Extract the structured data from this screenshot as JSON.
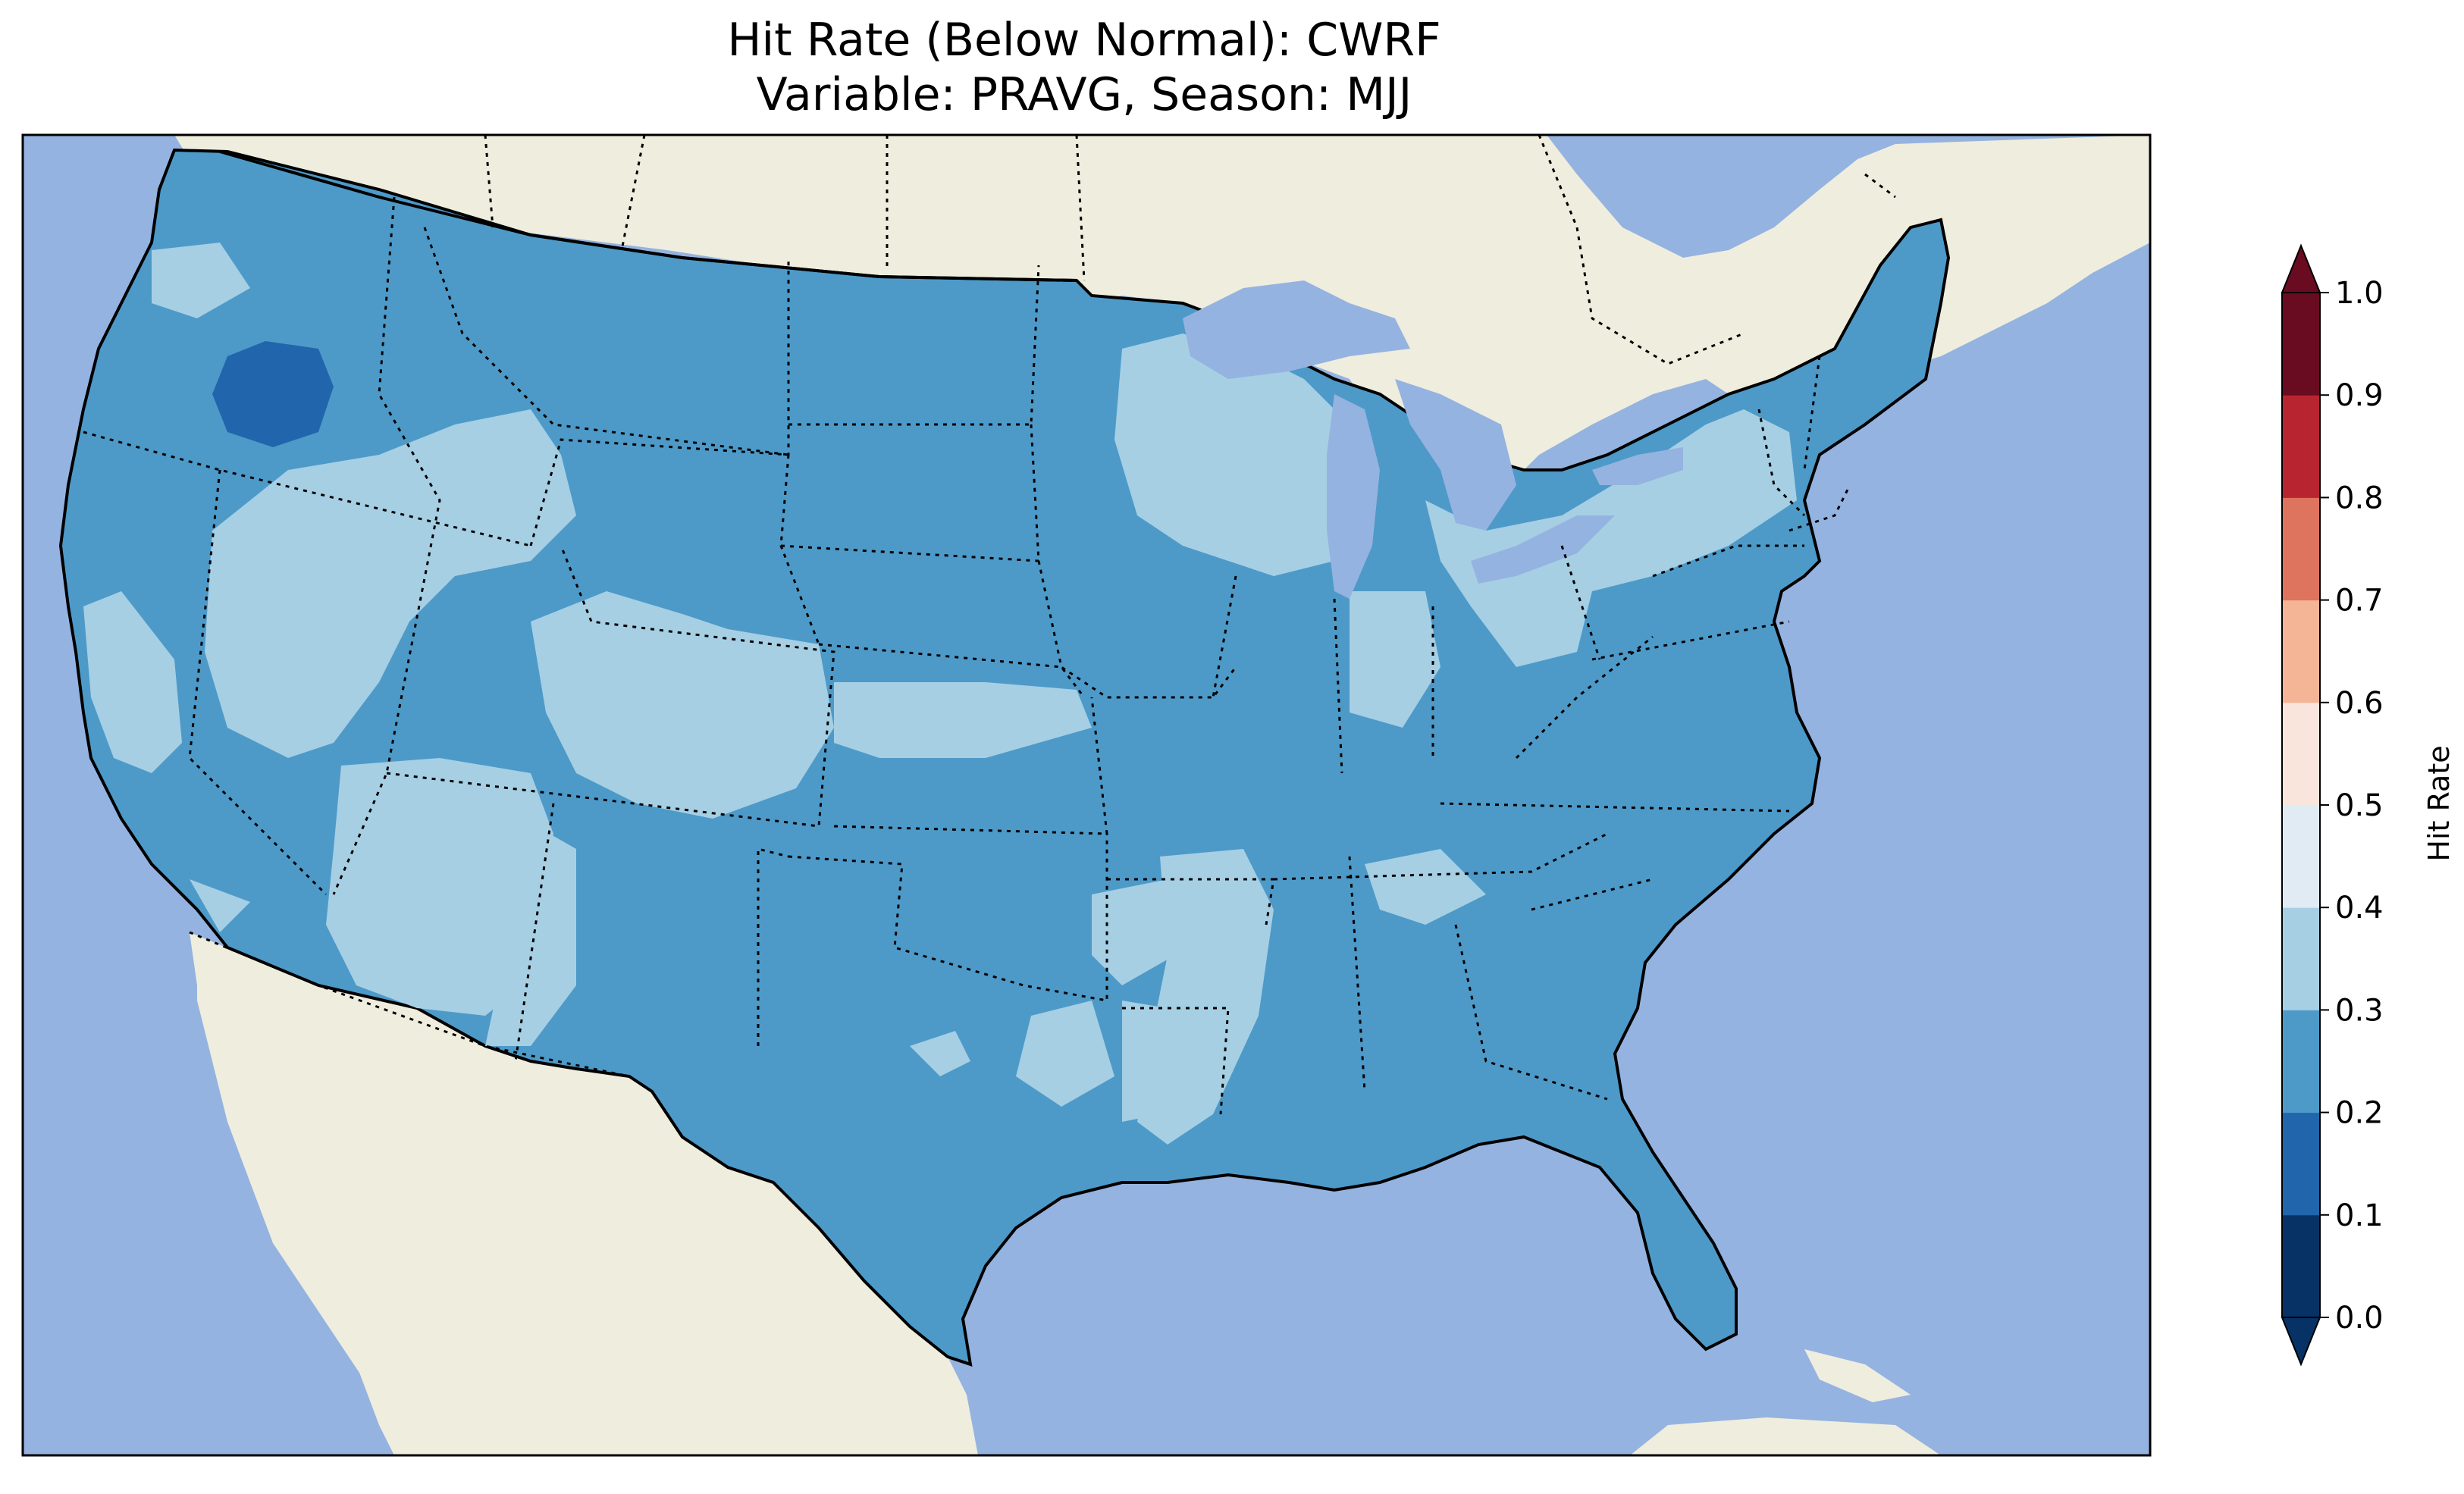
{
  "title_line1": "Hit Rate (Below Normal): CWRF",
  "title_line2": "Variable: PRAVG, Season: MJJ",
  "colorbar": {
    "label": "Hit Rate",
    "ticks": [
      "0.0",
      "0.1",
      "0.2",
      "0.3",
      "0.4",
      "0.5",
      "0.6",
      "0.7",
      "0.8",
      "0.9",
      "1.0"
    ],
    "bins": [
      {
        "range": "0.0-0.1",
        "color": "#073266"
      },
      {
        "range": "0.1-0.2",
        "color": "#2166ac"
      },
      {
        "range": "0.2-0.3",
        "color": "#4d9ac9"
      },
      {
        "range": "0.3-0.4",
        "color": "#a6cfe4"
      },
      {
        "range": "0.4-0.5",
        "color": "#e0ebf3"
      },
      {
        "range": "0.5-0.6",
        "color": "#f9e5dc"
      },
      {
        "range": "0.6-0.7",
        "color": "#f4b596"
      },
      {
        "range": "0.7-0.8",
        "color": "#de735e"
      },
      {
        "range": "0.8-0.9",
        "color": "#b82530"
      },
      {
        "range": "0.9-1.0",
        "color": "#690b21"
      }
    ],
    "extend": "both"
  },
  "colors": {
    "ocean": "#95b3e0",
    "land": "#efedde",
    "hit_0.2_0.3": "#4d9ac9",
    "hit_0.3_0.4": "#a6cfe4",
    "hit_0.1_0.2": "#2166ac"
  },
  "map_summary": {
    "dominant_bin": "0.2-0.3",
    "secondary_bin": "0.3-0.4",
    "notable_low_patch": "Oregon interior (0.1-0.2)"
  }
}
